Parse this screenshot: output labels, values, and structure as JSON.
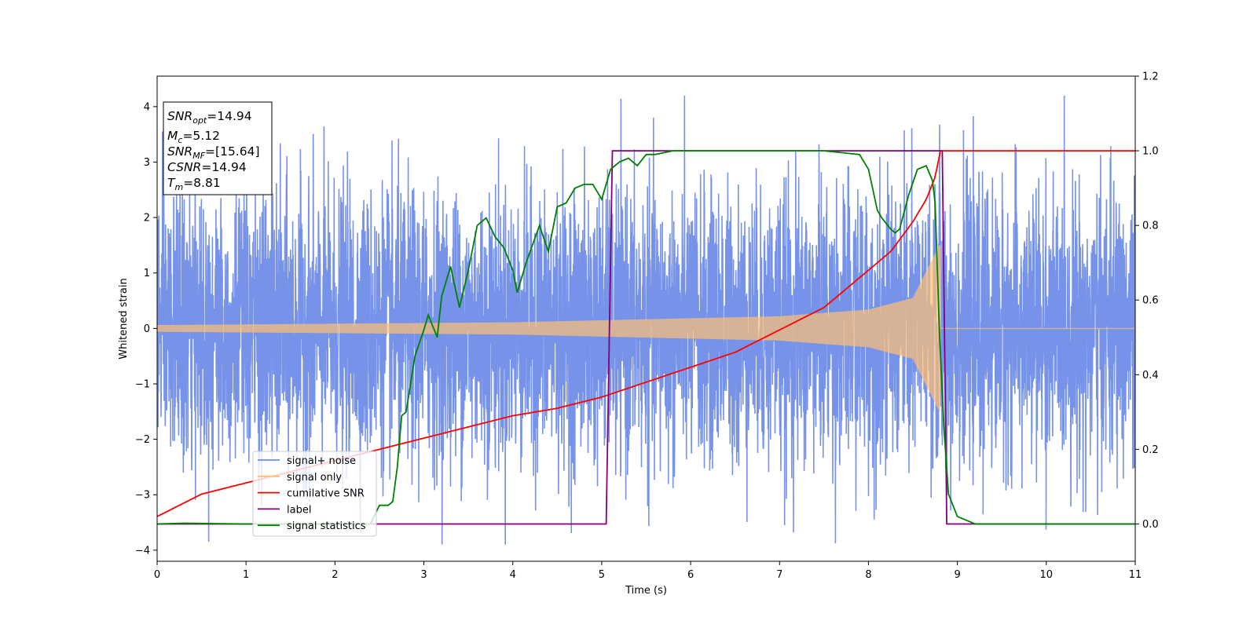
{
  "chart_data": {
    "type": "line",
    "xlabel": "Time (s)",
    "ylabel": "Whitened strain",
    "xlim": [
      0,
      11
    ],
    "ylim": [
      -4.2,
      4.55
    ],
    "ylim_right": [
      -0.1,
      1.2
    ],
    "grid": false,
    "x_ticks": [
      0,
      1,
      2,
      3,
      4,
      5,
      6,
      7,
      8,
      9,
      10,
      11
    ],
    "y_ticks": [
      -4,
      -3,
      -2,
      -1,
      0,
      1,
      2,
      3,
      4
    ],
    "y_ticks_right": [
      0.0,
      0.2,
      0.4,
      0.6,
      0.8,
      1.0,
      1.2
    ],
    "legend_position": "lower-left",
    "annotation": {
      "lines": [
        {
          "sym": "SNR",
          "sub": "opt",
          "value": "=14.94"
        },
        {
          "sym": "M",
          "sub": "c",
          "value": "=5.12"
        },
        {
          "sym": "SNR",
          "sub": "MF",
          "value": "=[15.64]"
        },
        {
          "sym": "CSNR",
          "sub": "",
          "value": "=14.94"
        },
        {
          "sym": "T",
          "sub": "m",
          "value": "=8.81"
        }
      ]
    },
    "series": [
      {
        "name": "signal+ noise",
        "color": "#6f8de8",
        "axis": "left",
        "kind": "noise",
        "std": 1.2,
        "x_range": [
          0,
          11
        ]
      },
      {
        "name": "signal only",
        "color": "#ffbf73",
        "axis": "left",
        "kind": "chirp",
        "coalescence_time": 8.81,
        "amplitude_at": [
          [
            0,
            0.06
          ],
          [
            4,
            0.11
          ],
          [
            7,
            0.22
          ],
          [
            8,
            0.34
          ],
          [
            8.5,
            0.55
          ],
          [
            8.8,
            1.5
          ]
        ]
      },
      {
        "name": "cumilative SNR",
        "color": "#ff0000",
        "axis": "right",
        "x": [
          0,
          0.5,
          1,
          1.5,
          2,
          2.5,
          3,
          3.5,
          4,
          4.5,
          5,
          5.5,
          6,
          6.5,
          7,
          7.5,
          8,
          8.25,
          8.5,
          8.65,
          8.75,
          8.81,
          11
        ],
        "y": [
          0.02,
          0.08,
          0.11,
          0.14,
          0.17,
          0.2,
          0.23,
          0.26,
          0.29,
          0.31,
          0.34,
          0.38,
          0.42,
          0.46,
          0.52,
          0.58,
          0.68,
          0.73,
          0.81,
          0.87,
          0.93,
          1.0,
          1.0
        ]
      },
      {
        "name": "label",
        "color": "#800080",
        "axis": "right",
        "x": [
          0,
          5.05,
          5.12,
          8.83,
          8.88,
          11
        ],
        "y": [
          0,
          0,
          1,
          1,
          0,
          0
        ]
      },
      {
        "name": "signal statistics",
        "color": "#008000",
        "axis": "right",
        "x": [
          0,
          0.3,
          1,
          2,
          2.4,
          2.5,
          2.6,
          2.65,
          2.7,
          2.75,
          2.8,
          2.9,
          3.0,
          3.05,
          3.15,
          3.2,
          3.3,
          3.4,
          3.5,
          3.6,
          3.7,
          3.8,
          3.9,
          4.0,
          4.05,
          4.15,
          4.3,
          4.4,
          4.5,
          4.6,
          4.7,
          4.8,
          4.9,
          5.0,
          5.1,
          5.2,
          5.3,
          5.4,
          5.5,
          5.6,
          5.8,
          6.0,
          6.5,
          7.0,
          7.5,
          7.9,
          8.0,
          8.1,
          8.15,
          8.25,
          8.3,
          8.35,
          8.45,
          8.55,
          8.65,
          8.72,
          8.75,
          8.8,
          8.85,
          8.9,
          9.0,
          9.2,
          9.5,
          11
        ],
        "y": [
          0.0,
          0.002,
          0.0,
          0.0,
          0.0,
          0.05,
          0.05,
          0.06,
          0.15,
          0.29,
          0.3,
          0.45,
          0.52,
          0.56,
          0.5,
          0.61,
          0.69,
          0.58,
          0.68,
          0.8,
          0.82,
          0.77,
          0.74,
          0.68,
          0.62,
          0.7,
          0.8,
          0.73,
          0.85,
          0.86,
          0.9,
          0.91,
          0.91,
          0.87,
          0.95,
          0.97,
          0.98,
          0.96,
          0.99,
          0.99,
          1.0,
          1.0,
          1.0,
          1.0,
          1.0,
          0.99,
          0.95,
          0.84,
          0.82,
          0.79,
          0.78,
          0.79,
          0.88,
          0.95,
          0.96,
          0.92,
          0.86,
          0.5,
          0.25,
          0.08,
          0.02,
          0.0,
          0.0,
          0.0
        ]
      }
    ]
  }
}
